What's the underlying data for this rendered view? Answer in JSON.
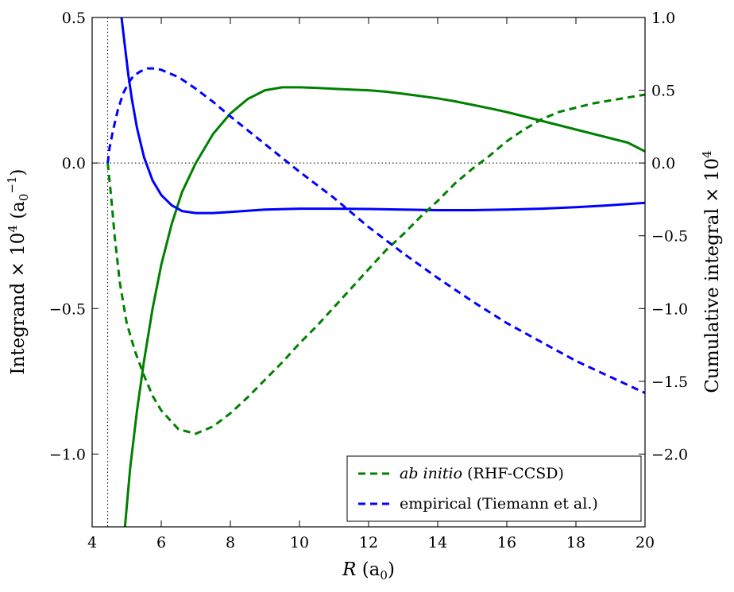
{
  "chart_data": {
    "type": "line",
    "title": "",
    "xlabel": "R (a0)",
    "xlabel_parts": {
      "main": "R",
      "unit_open": "(a",
      "unit_sub": "0",
      "unit_close": ")"
    },
    "ylabel_left": "Integrand × 10^4 (a0^-1)",
    "ylabel_left_parts": {
      "main": "Integrand × 10",
      "exp": "4",
      "unit_open": "(a",
      "unit_sub": "0",
      "unit_sup": "−1",
      "unit_close": ")"
    },
    "ylabel_right": "Cumulative integral × 10^4",
    "ylabel_right_parts": {
      "main": "Cumulative integral × 10",
      "exp": "4"
    },
    "xlim": [
      4,
      20
    ],
    "ylim_left": [
      -1.25,
      0.5
    ],
    "ylim_right": [
      -2.5,
      1.0
    ],
    "xticks": [
      4,
      6,
      8,
      10,
      12,
      14,
      16,
      18,
      20
    ],
    "xtick_labels": [
      "4",
      "6",
      "8",
      "10",
      "12",
      "14",
      "16",
      "18",
      "20"
    ],
    "yticks_left": [
      -1.0,
      -0.5,
      0.0,
      0.5
    ],
    "ytick_labels_left": [
      "−1.0",
      "−0.5",
      "0.0",
      "0.5"
    ],
    "yticks_right": [
      -2.0,
      -1.5,
      -1.0,
      -0.5,
      0.0,
      0.5,
      1.0
    ],
    "ytick_labels_right": [
      "−2.0",
      "−1.5",
      "−1.0",
      "−0.5",
      "0.0",
      "0.5",
      "1.0"
    ],
    "reference_lines": {
      "hline_y": 0.0,
      "vline_x": 4.45
    },
    "legend_location": "lower-right",
    "legend": [
      {
        "italic": "ab initio",
        "rest": " (RHF-CCSD)",
        "color": "#008000",
        "dash": true
      },
      {
        "italic": "",
        "rest": "empirical (Tiemann et al.)",
        "color": "#0000ff",
        "dash": true
      }
    ],
    "series": [
      {
        "source": "ab initio",
        "kind": "integrand",
        "axis": "left",
        "color": "#008000",
        "dash": false,
        "x": [
          4.95,
          5.1,
          5.3,
          5.5,
          5.75,
          6.0,
          6.3,
          6.6,
          7.0,
          7.5,
          8.0,
          8.5,
          9.0,
          9.5,
          10.0,
          10.5,
          11.0,
          11.5,
          12.0,
          12.5,
          13.0,
          13.5,
          14.0,
          14.5,
          15.0,
          15.5,
          16.0,
          16.5,
          17.0,
          17.5,
          18.0,
          18.5,
          19.0,
          19.5,
          20.0
        ],
        "y": [
          -1.25,
          -1.05,
          -0.85,
          -0.68,
          -0.5,
          -0.35,
          -0.21,
          -0.1,
          0.0,
          0.1,
          0.17,
          0.22,
          0.25,
          0.26,
          0.26,
          0.258,
          0.255,
          0.252,
          0.25,
          0.245,
          0.238,
          0.23,
          0.222,
          0.212,
          0.2,
          0.188,
          0.175,
          0.16,
          0.145,
          0.13,
          0.115,
          0.1,
          0.085,
          0.07,
          0.04
        ]
      },
      {
        "source": "empirical",
        "kind": "integrand",
        "axis": "left",
        "color": "#0000ff",
        "dash": false,
        "x": [
          4.85,
          4.95,
          5.05,
          5.15,
          5.3,
          5.5,
          5.75,
          6.0,
          6.3,
          6.6,
          7.0,
          7.5,
          8.0,
          9.0,
          10.0,
          11.0,
          12.0,
          13.0,
          14.0,
          15.0,
          16.0,
          17.0,
          18.0,
          19.0,
          20.0
        ],
        "y": [
          0.5,
          0.4,
          0.3,
          0.22,
          0.12,
          0.02,
          -0.06,
          -0.11,
          -0.145,
          -0.165,
          -0.172,
          -0.172,
          -0.168,
          -0.16,
          -0.157,
          -0.157,
          -0.158,
          -0.16,
          -0.162,
          -0.162,
          -0.16,
          -0.157,
          -0.152,
          -0.145,
          -0.137
        ]
      },
      {
        "source": "ab initio",
        "kind": "cumulative",
        "axis": "right",
        "color": "#008000",
        "dash": true,
        "x": [
          4.45,
          4.55,
          4.65,
          4.8,
          5.0,
          5.25,
          5.5,
          5.75,
          6.0,
          6.5,
          7.0,
          7.5,
          8.0,
          8.5,
          9.0,
          9.5,
          10.0,
          10.5,
          11.0,
          11.5,
          12.0,
          12.5,
          13.0,
          13.5,
          14.0,
          14.5,
          15.0,
          15.5,
          16.0,
          16.5,
          17.0,
          17.5,
          18.0,
          18.5,
          19.0,
          19.5,
          20.0
        ],
        "y": [
          0.0,
          -0.23,
          -0.5,
          -0.82,
          -1.1,
          -1.3,
          -1.46,
          -1.6,
          -1.7,
          -1.83,
          -1.86,
          -1.81,
          -1.72,
          -1.61,
          -1.49,
          -1.37,
          -1.24,
          -1.12,
          -0.99,
          -0.86,
          -0.73,
          -0.6,
          -0.49,
          -0.37,
          -0.26,
          -0.14,
          -0.04,
          0.05,
          0.15,
          0.23,
          0.3,
          0.35,
          0.38,
          0.41,
          0.43,
          0.45,
          0.47
        ]
      },
      {
        "source": "empirical",
        "kind": "cumulative",
        "axis": "right",
        "color": "#0000ff",
        "dash": true,
        "x": [
          4.45,
          4.5,
          4.6,
          4.75,
          4.9,
          5.05,
          5.2,
          5.4,
          5.6,
          5.8,
          6.0,
          6.5,
          7.0,
          7.5,
          8.0,
          9.0,
          10.0,
          11.0,
          12.0,
          13.0,
          14.0,
          15.0,
          16.0,
          17.0,
          18.0,
          19.0,
          20.0
        ],
        "y": [
          0.0,
          0.1,
          0.22,
          0.37,
          0.48,
          0.55,
          0.6,
          0.63,
          0.65,
          0.65,
          0.64,
          0.59,
          0.51,
          0.42,
          0.32,
          0.13,
          -0.06,
          -0.24,
          -0.44,
          -0.62,
          -0.79,
          -0.95,
          -1.1,
          -1.23,
          -1.36,
          -1.47,
          -1.58
        ]
      }
    ]
  }
}
